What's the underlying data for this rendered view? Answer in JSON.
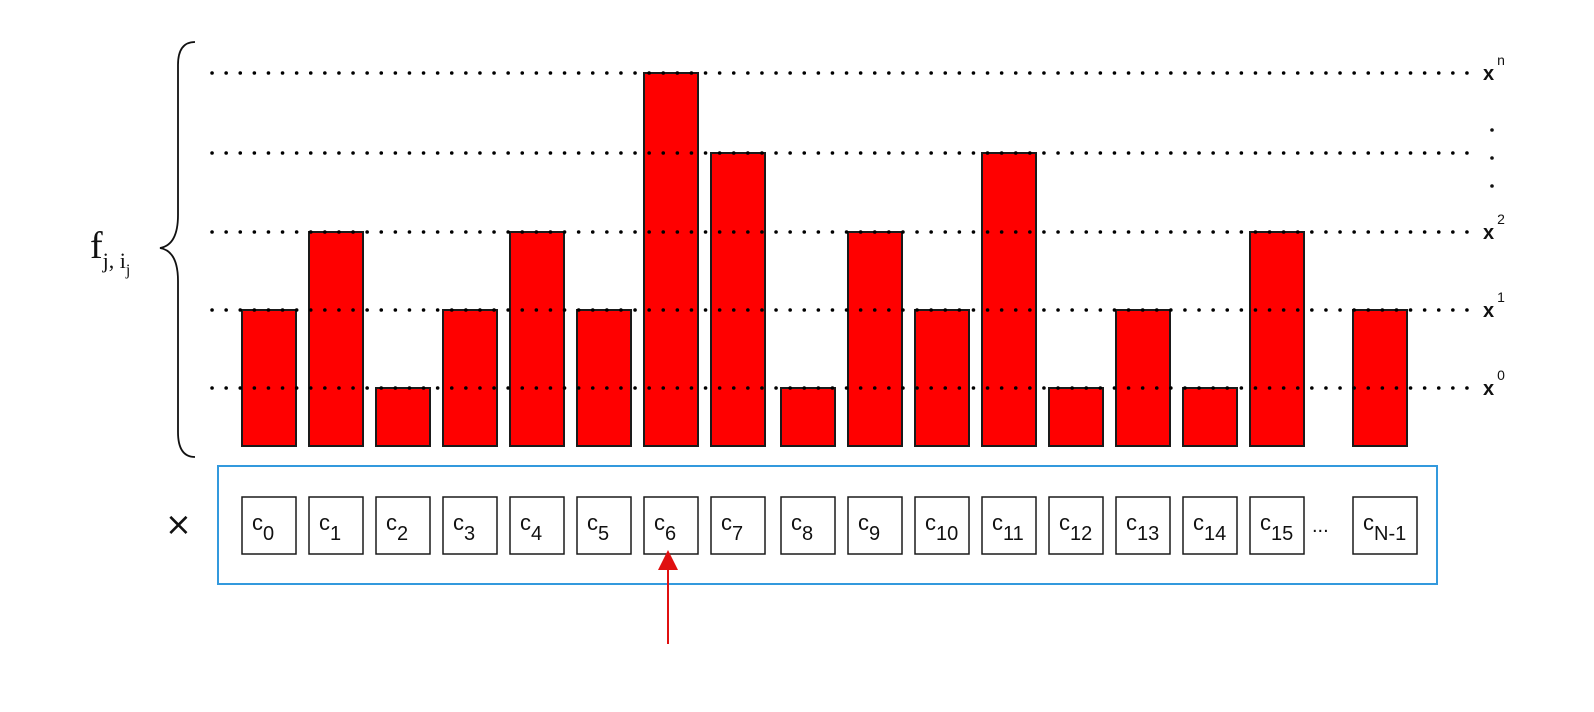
{
  "diagram": {
    "brace_label": {
      "base": "f",
      "sub_j": "j, i",
      "sub_sub": "j"
    },
    "multiply_symbol": "×",
    "levels": [
      {
        "base": "x",
        "exp": "0"
      },
      {
        "base": "x",
        "exp": "1"
      },
      {
        "base": "x",
        "exp": "2"
      },
      {
        "base": "x",
        "exp": "n"
      }
    ],
    "level_ellipsis": ". . .",
    "cell_ellipsis": "...",
    "cells": [
      {
        "base": "c",
        "sub": "0",
        "level": 1
      },
      {
        "base": "c",
        "sub": "1",
        "level": 2
      },
      {
        "base": "c",
        "sub": "2",
        "level": 0
      },
      {
        "base": "c",
        "sub": "3",
        "level": 1
      },
      {
        "base": "c",
        "sub": "4",
        "level": 2
      },
      {
        "base": "c",
        "sub": "5",
        "level": 1
      },
      {
        "base": "c",
        "sub": "6",
        "level": 4
      },
      {
        "base": "c",
        "sub": "7",
        "level": 3
      },
      {
        "base": "c",
        "sub": "8",
        "level": 0
      },
      {
        "base": "c",
        "sub": "9",
        "level": 2
      },
      {
        "base": "c",
        "sub": "10",
        "level": 1
      },
      {
        "base": "c",
        "sub": "11",
        "level": 3
      },
      {
        "base": "c",
        "sub": "12",
        "level": 0
      },
      {
        "base": "c",
        "sub": "13",
        "level": 1
      },
      {
        "base": "c",
        "sub": "14",
        "level": 0
      },
      {
        "base": "c",
        "sub": "15",
        "level": 2
      },
      {
        "base": "c",
        "sub": "N-1",
        "level": 1
      }
    ],
    "highlighted_cell_index": 6,
    "colors": {
      "bar": "#ff0000",
      "container": "#3399dd",
      "arrow": "#e01010"
    }
  }
}
